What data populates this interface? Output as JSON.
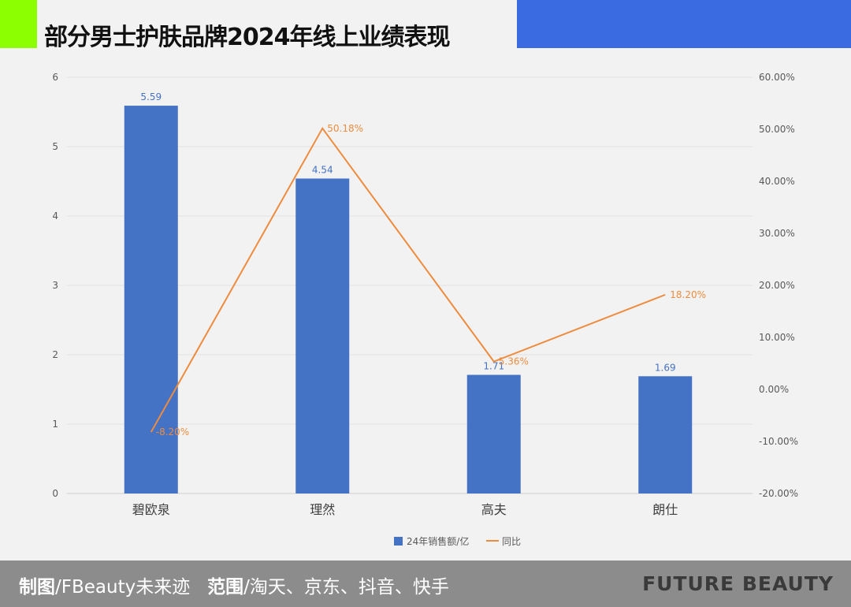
{
  "header": {
    "title": "部分男士护肤品牌2024年线上业绩表现"
  },
  "footer": {
    "credit_label": "制图",
    "credit_value": "/FBeauty未来迹",
    "scope_label": "范围",
    "scope_value": "/淘天、京东、抖音、快手",
    "brand": "FUTURE BEAUTY"
  },
  "colors": {
    "bar": "#4472c4",
    "line": "#ed8c3e",
    "green": "#8cff00",
    "blue": "#3a6be0"
  },
  "chart_data": {
    "type": "bar+line",
    "title": "部分男士护肤品牌2024年线上业绩表现",
    "categories": [
      "碧欧泉",
      "理然",
      "高夫",
      "朗仕"
    ],
    "series": [
      {
        "name": "24年销售额/亿",
        "type": "bar",
        "axis": "left",
        "values": [
          5.59,
          4.54,
          1.71,
          1.69
        ],
        "labels": [
          "5.59",
          "4.54",
          "1.71",
          "1.69"
        ]
      },
      {
        "name": "同比",
        "type": "line",
        "axis": "right",
        "values": [
          -8.2,
          50.18,
          5.36,
          18.2
        ],
        "labels": [
          "-8.20%",
          "50.18%",
          "5.36%",
          "18.20%"
        ]
      }
    ],
    "left_axis": {
      "range": [
        0,
        6
      ],
      "ticks": [
        "0",
        "1",
        "2",
        "3",
        "4",
        "5",
        "6"
      ]
    },
    "right_axis": {
      "range": [
        -20,
        60
      ],
      "ticks": [
        "-20.00%",
        "-10.00%",
        "0.00%",
        "10.00%",
        "20.00%",
        "30.00%",
        "40.00%",
        "50.00%",
        "60.00%"
      ]
    },
    "grid": true,
    "legend": "bottom"
  }
}
